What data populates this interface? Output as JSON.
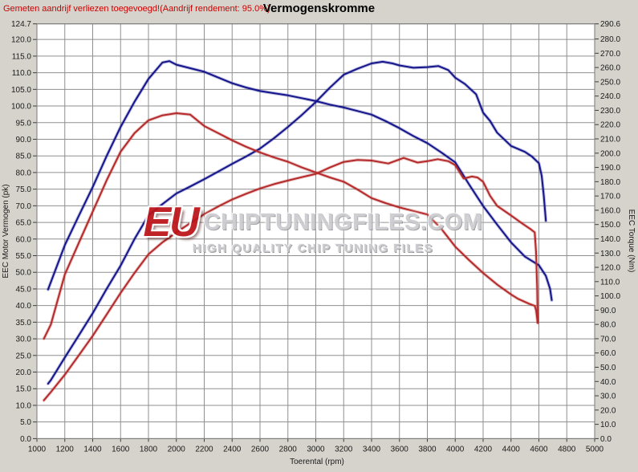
{
  "header": {
    "annotation": "Gemeten aandrijf verliezen toegevoegd!(Aandrijf rendement: 95.0%)",
    "title": "Vermogenskromme"
  },
  "watermark": {
    "prefix": "EU",
    "main": "CHIPTUNINGFILES.COM",
    "sub": "HIGH QUALITY CHIP TUNING FILES"
  },
  "chart_data": {
    "type": "line",
    "title": "Vermogenskromme",
    "xlabel": "Toerental (rpm)",
    "ylabel_left": "EEC Motor Vermogen (pk)",
    "ylabel_right": "EEC Torque (Nm)",
    "x_range": [
      1000,
      5000
    ],
    "y_left_range": [
      0,
      124.7
    ],
    "y_right_range": [
      0,
      290.6
    ],
    "grid": true,
    "legend": "none",
    "x_ticks": [
      1000,
      1200,
      1400,
      1600,
      1800,
      2000,
      2200,
      2400,
      2600,
      2800,
      3000,
      3200,
      3400,
      3600,
      3800,
      4000,
      4200,
      4400,
      4600,
      4800,
      5000
    ],
    "y_left_ticks": [
      0,
      5,
      10,
      15,
      20,
      25,
      30,
      35,
      40,
      45,
      50,
      55,
      60,
      65,
      70,
      75,
      80,
      85,
      90,
      95,
      100,
      105,
      110,
      115,
      120,
      124.7
    ],
    "y_right_ticks": [
      0,
      10,
      20,
      30,
      40,
      50,
      60,
      70,
      80,
      90,
      100,
      110,
      120,
      130,
      140,
      150,
      160,
      170,
      180,
      190,
      200,
      210,
      220,
      230,
      240,
      250,
      260,
      270,
      280,
      290.6
    ],
    "colors": {
      "blue": "#16168c",
      "red": "#b52a2a",
      "grid": "#8f8f8f",
      "frame": "#7a7a7a",
      "plot_bg": "#ffffff",
      "page_bg": "#d6d3cc",
      "annotation": "#cc0000"
    },
    "series": [
      {
        "name": "torque-blue-tuned",
        "axis": "right",
        "unit": "Nm",
        "color": "blue",
        "points": [
          [
            1080,
            104.5
          ],
          [
            1200,
            135.6
          ],
          [
            1300,
            156.0
          ],
          [
            1400,
            176.2
          ],
          [
            1500,
            198.0
          ],
          [
            1600,
            218.4
          ],
          [
            1700,
            236.0
          ],
          [
            1800,
            252.0
          ],
          [
            1900,
            263.5
          ],
          [
            1950,
            264.5
          ],
          [
            2000,
            262.0
          ],
          [
            2100,
            259.5
          ],
          [
            2200,
            257.0
          ],
          [
            2300,
            253.0
          ],
          [
            2400,
            249.0
          ],
          [
            2500,
            246.0
          ],
          [
            2600,
            243.5
          ],
          [
            2700,
            242.0
          ],
          [
            2800,
            240.5
          ],
          [
            2900,
            238.5
          ],
          [
            3000,
            236.5
          ],
          [
            3100,
            234.0
          ],
          [
            3200,
            232.0
          ],
          [
            3300,
            229.5
          ],
          [
            3400,
            227.0
          ],
          [
            3500,
            222.5
          ],
          [
            3600,
            217.5
          ],
          [
            3700,
            212.0
          ],
          [
            3800,
            207.0
          ],
          [
            3900,
            200.5
          ],
          [
            4000,
            193.5
          ],
          [
            4100,
            178.0
          ],
          [
            4200,
            163.0
          ],
          [
            4300,
            150.0
          ],
          [
            4400,
            137.5
          ],
          [
            4500,
            127.5
          ],
          [
            4600,
            121.5
          ],
          [
            4650,
            114.0
          ],
          [
            4680,
            105.0
          ],
          [
            4692,
            97.0
          ]
        ]
      },
      {
        "name": "power-blue-tuned",
        "axis": "left",
        "unit": "pk",
        "color": "blue",
        "points": [
          [
            1080,
            16.5
          ],
          [
            1100,
            17.6
          ],
          [
            1200,
            24.4
          ],
          [
            1300,
            31.0
          ],
          [
            1400,
            37.7
          ],
          [
            1500,
            45.0
          ],
          [
            1600,
            52.0
          ],
          [
            1700,
            60.0
          ],
          [
            1800,
            67.1
          ],
          [
            1900,
            70.5
          ],
          [
            2000,
            73.7
          ],
          [
            2100,
            75.8
          ],
          [
            2200,
            78.0
          ],
          [
            2300,
            80.3
          ],
          [
            2400,
            82.6
          ],
          [
            2500,
            84.8
          ],
          [
            2600,
            87.2
          ],
          [
            2700,
            90.3
          ],
          [
            2800,
            93.7
          ],
          [
            2900,
            97.3
          ],
          [
            3000,
            101.2
          ],
          [
            3100,
            105.5
          ],
          [
            3200,
            109.4
          ],
          [
            3300,
            111.2
          ],
          [
            3400,
            112.8
          ],
          [
            3480,
            113.3
          ],
          [
            3550,
            112.8
          ],
          [
            3600,
            112.2
          ],
          [
            3700,
            111.5
          ],
          [
            3800,
            111.7
          ],
          [
            3880,
            112.0
          ],
          [
            3950,
            110.8
          ],
          [
            4000,
            108.5
          ],
          [
            4070,
            106.6
          ],
          [
            4150,
            103.5
          ],
          [
            4200,
            98.0
          ],
          [
            4250,
            95.5
          ],
          [
            4300,
            92.0
          ],
          [
            4400,
            88.0
          ],
          [
            4500,
            86.2
          ],
          [
            4550,
            84.8
          ],
          [
            4600,
            82.8
          ],
          [
            4620,
            79.0
          ],
          [
            4635,
            73.0
          ],
          [
            4650,
            65.5
          ]
        ]
      },
      {
        "name": "torque-red-original",
        "axis": "right",
        "unit": "Nm",
        "color": "red",
        "points": [
          [
            1050,
            70.0
          ],
          [
            1100,
            80.0
          ],
          [
            1200,
            115.0
          ],
          [
            1300,
            137.0
          ],
          [
            1400,
            159.0
          ],
          [
            1500,
            181.0
          ],
          [
            1600,
            201.0
          ],
          [
            1700,
            214.0
          ],
          [
            1800,
            223.0
          ],
          [
            1900,
            226.5
          ],
          [
            2000,
            228.0
          ],
          [
            2100,
            227.0
          ],
          [
            2200,
            219.0
          ],
          [
            2300,
            214.0
          ],
          [
            2400,
            209.0
          ],
          [
            2500,
            204.5
          ],
          [
            2600,
            200.5
          ],
          [
            2700,
            197.0
          ],
          [
            2800,
            194.0
          ],
          [
            2900,
            190.0
          ],
          [
            3000,
            186.5
          ],
          [
            3100,
            183.0
          ],
          [
            3200,
            180.0
          ],
          [
            3300,
            174.5
          ],
          [
            3400,
            168.5
          ],
          [
            3500,
            165.0
          ],
          [
            3600,
            162.0
          ],
          [
            3700,
            159.5
          ],
          [
            3800,
            157.0
          ],
          [
            3900,
            147.0
          ],
          [
            4000,
            134.5
          ],
          [
            4100,
            125.0
          ],
          [
            4200,
            116.0
          ],
          [
            4300,
            108.0
          ],
          [
            4400,
            101.0
          ],
          [
            4450,
            98.0
          ],
          [
            4530,
            94.5
          ],
          [
            4570,
            93.0
          ],
          [
            4580,
            90.0
          ],
          [
            4592,
            81.0
          ]
        ]
      },
      {
        "name": "power-red-original",
        "axis": "left",
        "unit": "pk",
        "color": "red",
        "points": [
          [
            1050,
            11.5
          ],
          [
            1100,
            14.0
          ],
          [
            1200,
            19.2
          ],
          [
            1300,
            25.0
          ],
          [
            1400,
            30.9
          ],
          [
            1500,
            37.3
          ],
          [
            1600,
            43.8
          ],
          [
            1700,
            49.8
          ],
          [
            1800,
            55.4
          ],
          [
            1900,
            59.0
          ],
          [
            2000,
            62.0
          ],
          [
            2100,
            64.8
          ],
          [
            2200,
            67.5
          ],
          [
            2300,
            69.8
          ],
          [
            2400,
            71.9
          ],
          [
            2500,
            73.6
          ],
          [
            2600,
            75.2
          ],
          [
            2700,
            76.5
          ],
          [
            2800,
            77.6
          ],
          [
            2900,
            78.6
          ],
          [
            3000,
            79.6
          ],
          [
            3100,
            81.5
          ],
          [
            3200,
            83.2
          ],
          [
            3300,
            83.8
          ],
          [
            3400,
            83.6
          ],
          [
            3520,
            82.7
          ],
          [
            3630,
            84.4
          ],
          [
            3730,
            83.0
          ],
          [
            3800,
            83.4
          ],
          [
            3875,
            84.0
          ],
          [
            3950,
            83.4
          ],
          [
            4000,
            82.2
          ],
          [
            4060,
            78.2
          ],
          [
            4120,
            78.8
          ],
          [
            4160,
            78.5
          ],
          [
            4200,
            77.2
          ],
          [
            4250,
            73.0
          ],
          [
            4300,
            70.0
          ],
          [
            4400,
            67.1
          ],
          [
            4480,
            64.7
          ],
          [
            4540,
            63.0
          ],
          [
            4570,
            62.0
          ],
          [
            4580,
            56.0
          ],
          [
            4588,
            45.0
          ],
          [
            4592,
            35.0
          ]
        ]
      }
    ]
  }
}
